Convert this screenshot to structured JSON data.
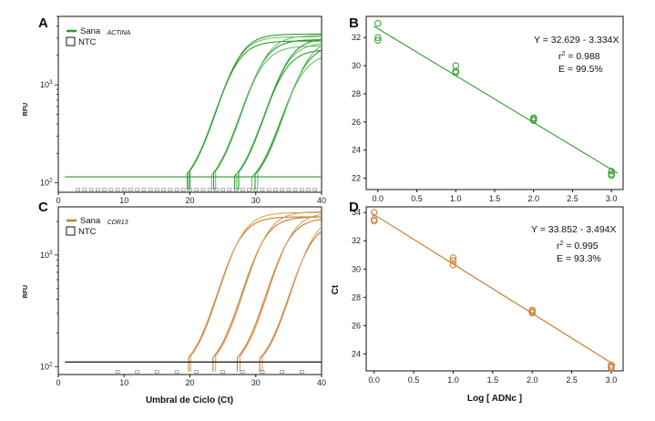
{
  "figure": {
    "x_axis_title": "Umbral de Ciclo (Ct)",
    "regression_x_title": "Log [ ADNc ]",
    "regression_y_title": "Ct",
    "rfu_label": "RFU"
  },
  "colors": {
    "green": "#2e9a2e",
    "green_light": "#6cc06c",
    "orange": "#c87a2a",
    "orange_light": "#d9a063"
  },
  "chart_data": [
    {
      "panel": "A",
      "type": "line",
      "title": "",
      "xlabel": "",
      "ylabel": "RFU",
      "xlim": [
        0,
        40
      ],
      "y_scale": "log",
      "ylim": [
        80,
        5000
      ],
      "x_ticks": [
        "0",
        "10",
        "20",
        "30",
        "40"
      ],
      "y_tick_labels": [
        {
          "base": "10",
          "exp": "2",
          "value": 100
        },
        {
          "base": "10",
          "exp": "3",
          "value": 1000
        }
      ],
      "threshold_rfu": 115,
      "color_key": "green",
      "legend": [
        {
          "label": "Sana",
          "subscript": "ACTINA",
          "kind": "line"
        },
        {
          "label": "NTC",
          "subscript": "",
          "kind": "box"
        }
      ],
      "curves": [
        {
          "ct": 22.6,
          "plateau": 2800
        },
        {
          "ct": 22.8,
          "plateau": 3100
        },
        {
          "ct": 23.0,
          "plateau": 3300
        },
        {
          "ct": 26.3,
          "plateau": 2500
        },
        {
          "ct": 26.6,
          "plateau": 2900
        },
        {
          "ct": 26.9,
          "plateau": 3200
        },
        {
          "ct": 29.8,
          "plateau": 2300
        },
        {
          "ct": 30.1,
          "plateau": 2700
        },
        {
          "ct": 30.4,
          "plateau": 3000
        },
        {
          "ct": 32.4,
          "plateau": 2100
        },
        {
          "ct": 32.9,
          "plateau": 2600
        },
        {
          "ct": 33.3,
          "plateau": 3000
        }
      ],
      "ntc_markers_x": [
        3,
        4,
        5,
        6,
        7,
        8,
        9,
        10,
        11,
        12,
        13,
        14,
        15,
        16,
        17,
        18,
        19,
        20,
        21,
        22,
        23,
        24,
        25,
        26,
        27,
        28,
        29,
        30,
        31,
        32,
        33,
        34,
        35,
        36,
        37,
        38,
        39
      ]
    },
    {
      "panel": "B",
      "type": "scatter",
      "title": "",
      "xlabel": "",
      "ylabel": "",
      "xlim": [
        -0.15,
        3.15
      ],
      "ylim": [
        21.2,
        33.5
      ],
      "x_ticks": [
        "0.0",
        "0.5",
        "1.0",
        "1.5",
        "2.0",
        "2.5",
        "3.0"
      ],
      "y_ticks": [
        "22",
        "24",
        "26",
        "28",
        "30",
        "32"
      ],
      "color_key": "green",
      "points": [
        {
          "x": 0,
          "y": 33.0
        },
        {
          "x": 0,
          "y": 32.0
        },
        {
          "x": 0,
          "y": 31.8
        },
        {
          "x": 1,
          "y": 30.0
        },
        {
          "x": 1,
          "y": 29.6
        },
        {
          "x": 1,
          "y": 29.5
        },
        {
          "x": 2,
          "y": 26.3
        },
        {
          "x": 2,
          "y": 26.2
        },
        {
          "x": 2,
          "y": 26.1
        },
        {
          "x": 3,
          "y": 22.5
        },
        {
          "x": 3,
          "y": 22.3
        },
        {
          "x": 3,
          "y": 22.2
        }
      ],
      "fit": {
        "intercept": 32.629,
        "slope": -3.334,
        "x_range": [
          -0.05,
          3.08
        ]
      },
      "annotations": {
        "equation": "Y = 32.629 - 3.334X",
        "r2_prefix": "r",
        "r2_exp": "2",
        "r2_value": " = 0.988",
        "efficiency": "E = 99.5%"
      }
    },
    {
      "panel": "C",
      "type": "line",
      "title": "",
      "xlabel": "Umbral de Ciclo (Ct)",
      "ylabel": "RFU",
      "xlim": [
        0,
        40
      ],
      "y_scale": "log",
      "ylim": [
        85,
        2700
      ],
      "x_ticks": [
        "0",
        "10",
        "20",
        "30",
        "40"
      ],
      "y_tick_labels": [
        {
          "base": "10",
          "exp": "2",
          "value": 100
        },
        {
          "base": "10",
          "exp": "3",
          "value": 1000
        }
      ],
      "threshold_rfu": 110,
      "color_key": "orange",
      "legend": [
        {
          "label": "Sana",
          "subscript": "CDR13",
          "kind": "line"
        },
        {
          "label": "NTC",
          "subscript": "",
          "kind": "box"
        }
      ],
      "curves": [
        {
          "ct": 22.8,
          "plateau": 2200
        },
        {
          "ct": 23.1,
          "plateau": 2400
        },
        {
          "ct": 26.5,
          "plateau": 2200
        },
        {
          "ct": 26.9,
          "plateau": 2450
        },
        {
          "ct": 30.2,
          "plateau": 2150
        },
        {
          "ct": 30.6,
          "plateau": 2400
        },
        {
          "ct": 33.6,
          "plateau": 2000
        },
        {
          "ct": 34.0,
          "plateau": 2300
        }
      ],
      "ntc_markers_x": [
        9,
        12,
        15,
        18,
        21,
        25,
        28,
        31,
        34,
        37
      ]
    },
    {
      "panel": "D",
      "type": "scatter",
      "title": "",
      "xlabel": "Log [ ADNc ]",
      "ylabel": "Ct",
      "xlim": [
        -0.1,
        3.15
      ],
      "ylim": [
        22.8,
        34.4
      ],
      "x_ticks": [
        "0.0",
        "0.5",
        "1.0",
        "1.5",
        "2.0",
        "2.5",
        "3.0"
      ],
      "y_ticks": [
        "24",
        "26",
        "28",
        "30",
        "32",
        "34"
      ],
      "color_key": "orange",
      "points": [
        {
          "x": 0,
          "y": 34.0
        },
        {
          "x": 0,
          "y": 33.5
        },
        {
          "x": 0,
          "y": 33.4
        },
        {
          "x": 1,
          "y": 30.8
        },
        {
          "x": 1,
          "y": 30.6
        },
        {
          "x": 1,
          "y": 30.3
        },
        {
          "x": 2,
          "y": 27.1
        },
        {
          "x": 2,
          "y": 27.0
        },
        {
          "x": 2,
          "y": 26.9
        },
        {
          "x": 3,
          "y": 23.2
        },
        {
          "x": 3,
          "y": 23.1
        },
        {
          "x": 3,
          "y": 23.0
        }
      ],
      "fit": {
        "intercept": 33.852,
        "slope": -3.494,
        "x_range": [
          -0.02,
          3.05
        ]
      },
      "annotations": {
        "equation": "Y = 33.852 - 3.494X",
        "r2_prefix": "r",
        "r2_exp": "2",
        "r2_value": " = 0.995",
        "efficiency": "E = 93.3%"
      }
    }
  ]
}
